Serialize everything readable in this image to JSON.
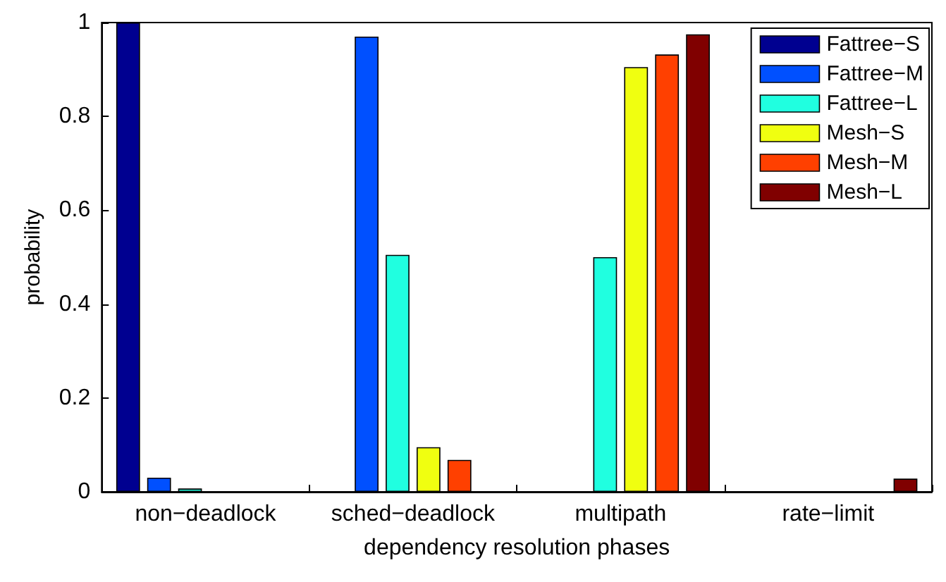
{
  "chart_data": {
    "type": "bar",
    "xlabel": "dependency resolution phases",
    "ylabel": "probability",
    "categories": [
      "non−deadlock",
      "sched−deadlock",
      "multipath",
      "rate−limit"
    ],
    "series": [
      {
        "name": "Fattree−S",
        "color": "#000090",
        "values": [
          1,
          0,
          0,
          0
        ]
      },
      {
        "name": "Fattree−M",
        "color": "#0050ff",
        "values": [
          0.03,
          0.97,
          0,
          0
        ]
      },
      {
        "name": "Fattree−L",
        "color": "#20ffe0",
        "values": [
          0.007,
          0.505,
          0.5,
          0
        ]
      },
      {
        "name": "Mesh−S",
        "color": "#f0ff10",
        "values": [
          0,
          0.095,
          0.905,
          0
        ]
      },
      {
        "name": "Mesh−M",
        "color": "#ff4000",
        "values": [
          0,
          0.068,
          0.932,
          0
        ]
      },
      {
        "name": "Mesh−L",
        "color": "#800000",
        "values": [
          0,
          0,
          0.975,
          0.028
        ]
      }
    ],
    "ylim": [
      0,
      1
    ],
    "yticks": [
      0,
      0.2,
      0.4,
      0.6,
      0.8,
      1
    ],
    "grid": false,
    "legend": "top right"
  }
}
